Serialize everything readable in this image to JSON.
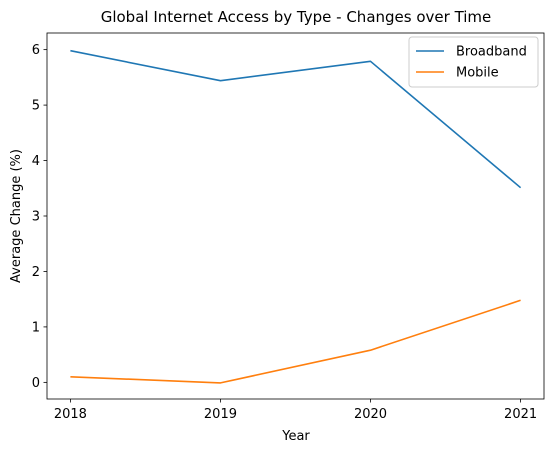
{
  "chart_data": {
    "type": "line",
    "title": "Global Internet Access by Type - Changes over Time",
    "xlabel": "Year",
    "ylabel": "Average Change (%)",
    "x": [
      "2018",
      "2019",
      "2020",
      "2021"
    ],
    "ylim": [
      -0.3,
      6.3
    ],
    "yticks": [
      "0",
      "1",
      "2",
      "3",
      "4",
      "5",
      "6"
    ],
    "grid": false,
    "legend_position": "top-right",
    "series": [
      {
        "name": "Broadband",
        "color": "#1f77b4",
        "values": [
          5.98,
          5.44,
          5.79,
          3.51
        ]
      },
      {
        "name": "Mobile",
        "color": "#ff7f0e",
        "values": [
          0.1,
          -0.01,
          0.58,
          1.48
        ]
      }
    ]
  }
}
